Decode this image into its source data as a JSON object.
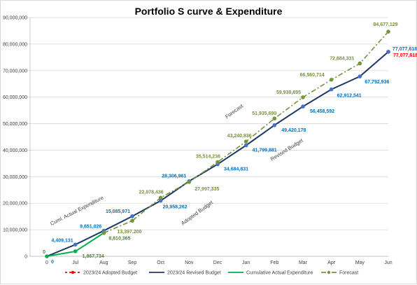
{
  "chart_data": {
    "type": "line",
    "title": "Portfolio S curve & Expenditure",
    "categories": [
      "0",
      "Jul",
      "Aug",
      "Sep",
      "Oct",
      "Nov",
      "Dec",
      "Jan",
      "Feb",
      "Mar",
      "Apr",
      "May",
      "Jun"
    ],
    "ylim": [
      0,
      90000000
    ],
    "yticks": [
      0,
      10000000,
      20000000,
      30000000,
      40000000,
      50000000,
      60000000,
      70000000,
      80000000,
      90000000
    ],
    "ytick_labels": [
      "0",
      "10,000,000",
      "20,000,000",
      "30,000,000",
      "40,000,000",
      "50,000,000",
      "60,000,000",
      "70,000,000",
      "80,000,000",
      "90,000,000"
    ],
    "grid": true,
    "legend_position": "bottom",
    "series": [
      {
        "name": "2023/24 Adopted Budget",
        "color": "#ff0000",
        "style": "dashed",
        "values": [
          null,
          null,
          null,
          null,
          null,
          null,
          null,
          null,
          null,
          null,
          null,
          null,
          77077618
        ],
        "labels": [
          "",
          "",
          "",
          "",
          "",
          "",
          "",
          "",
          "",
          "",
          "",
          "",
          "77,077,618"
        ]
      },
      {
        "name": "2023/24 Revised Budget",
        "color": "#1f3864",
        "label_color": "#0070c0",
        "style": "solid",
        "values": [
          0,
          4409131,
          9651026,
          15085971,
          20958262,
          28306961,
          34684831,
          41799881,
          49420178,
          56458592,
          62912541,
          67792936,
          77077618
        ],
        "labels": [
          "0",
          "4,409,131",
          "9,651,026",
          "15,085,971",
          "20,958,262",
          "28,306,961",
          "34,684,831",
          "41,799,881",
          "49,420,178",
          "56,458,592",
          "62,912,541",
          "67,792,936",
          "77,077,618"
        ]
      },
      {
        "name": "Cumulative Actual Expenditure",
        "color": "#00b050",
        "label_color": "#548235",
        "style": "solid",
        "values": [
          0,
          1867734,
          8810365,
          null,
          null,
          null,
          null,
          null,
          null,
          null,
          null,
          null,
          null
        ],
        "labels": [
          "0",
          "1,867,734",
          "8,810,365",
          "",
          "",
          "",
          "",
          "",
          "",
          "",
          "",
          "",
          ""
        ]
      },
      {
        "name": "Forecast",
        "color": "#77933c",
        "label_color": "#77933c",
        "style": "dashdot",
        "values": [
          null,
          null,
          8810365,
          13397200,
          22078436,
          27997335,
          35514236,
          43240836,
          51935690,
          59930895,
          66560714,
          72684331,
          84677129
        ],
        "labels": [
          "",
          "",
          "",
          "13,397,200",
          "22,078,436",
          "27,997,335",
          "35,514,236",
          "43,240,836",
          "51,935,690",
          "59,930,895",
          "66,560,714",
          "72,684,331",
          "84,677,129"
        ]
      }
    ],
    "annotations": [
      "Cuml. Actual Expenditure",
      "Adopted Budget",
      "Forecast",
      "Revised Budget"
    ]
  }
}
